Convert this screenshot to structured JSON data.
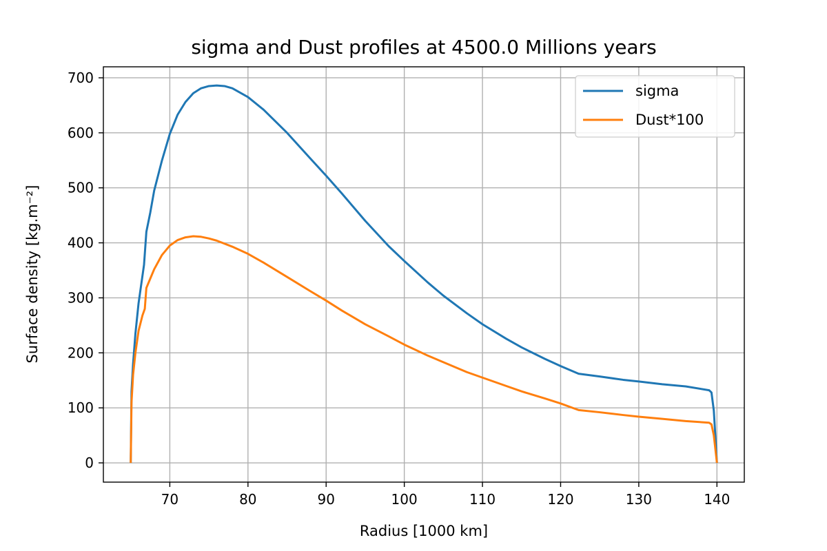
{
  "chart_data": {
    "type": "line",
    "title": "sigma and Dust profiles at 4500.0 Millions years",
    "xlabel": "Radius [1000 km]",
    "ylabel": "Surface density [kg.m⁻²]",
    "xlim": [
      61.5,
      143.5
    ],
    "ylim": [
      -35,
      720
    ],
    "xticks": [
      70,
      80,
      90,
      100,
      110,
      120,
      130,
      140
    ],
    "yticks": [
      0,
      100,
      200,
      300,
      400,
      500,
      600,
      700
    ],
    "grid": true,
    "legend_position": "top-right",
    "series": [
      {
        "name": "sigma",
        "color": "#1f77b4",
        "x": [
          65.0,
          65.1,
          65.3,
          65.6,
          66.0,
          66.5,
          66.7,
          67.0,
          67.5,
          68.0,
          69.0,
          70.0,
          71.0,
          72.0,
          73.0,
          74.0,
          75.0,
          76.0,
          77.0,
          78.0,
          80.0,
          82.0,
          85.0,
          88.0,
          90.0,
          92.0,
          95.0,
          98.0,
          100.0,
          103.0,
          105.0,
          108.0,
          110.0,
          113.0,
          115.0,
          118.0,
          120.0,
          122.3,
          125.0,
          128.0,
          130.0,
          133.0,
          136.0,
          139.0,
          139.3,
          139.6,
          140.0
        ],
        "y": [
          0,
          130,
          180,
          235,
          290,
          340,
          360,
          420,
          455,
          495,
          550,
          598,
          633,
          656,
          672,
          681,
          685,
          686,
          685,
          681,
          665,
          642,
          600,
          553,
          522,
          490,
          440,
          394,
          367,
          328,
          304,
          272,
          252,
          226,
          210,
          189,
          176,
          162,
          157,
          151,
          148,
          143,
          139,
          132,
          128,
          95,
          0
        ]
      },
      {
        "name": "Dust*100",
        "color": "#ff7f0e",
        "x": [
          65.0,
          65.1,
          65.3,
          65.6,
          66.0,
          66.5,
          66.8,
          67.0,
          67.5,
          68.0,
          69.0,
          70.0,
          71.0,
          72.0,
          73.0,
          74.0,
          75.0,
          76.0,
          78.0,
          80.0,
          82.0,
          85.0,
          88.0,
          90.0,
          92.0,
          95.0,
          98.0,
          100.0,
          103.0,
          105.0,
          108.0,
          110.0,
          113.0,
          115.0,
          118.0,
          120.0,
          122.3,
          125.0,
          128.0,
          130.0,
          133.0,
          136.0,
          139.0,
          139.3,
          139.6,
          140.0
        ],
        "y": [
          0,
          110,
          160,
          200,
          240,
          268,
          280,
          318,
          335,
          352,
          378,
          395,
          405,
          410,
          412,
          411,
          408,
          404,
          393,
          380,
          364,
          338,
          312,
          295,
          277,
          252,
          230,
          215,
          195,
          183,
          165,
          155,
          140,
          130,
          117,
          108,
          96,
          92,
          87,
          84,
          80,
          76,
          73,
          70,
          50,
          0
        ]
      }
    ]
  }
}
